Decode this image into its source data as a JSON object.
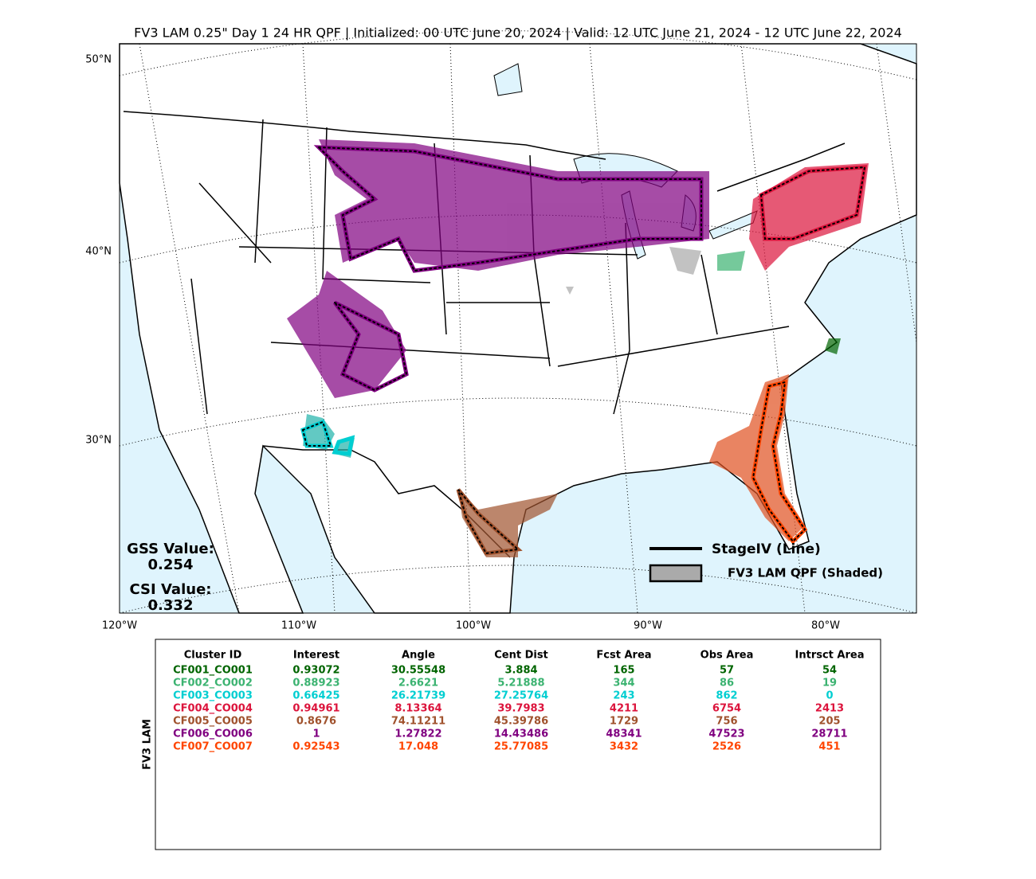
{
  "title": "FV3 LAM 0.25\" Day 1 24 HR QPF | Initialized: 00 UTC June 20, 2024 | Valid: 12 UTC June 21, 2024 - 12 UTC June 22, 2024",
  "lat_labels": [
    "50°N",
    "40°N",
    "30°N"
  ],
  "lon_labels": [
    "120°W",
    "110°W",
    "100°W",
    "90°W",
    "80°W"
  ],
  "stats": {
    "gss_label": "GSS Value:",
    "gss": "0.254",
    "csi_label": "CSI Value:",
    "csi": "0.332"
  },
  "legend": {
    "line": "StageIV (Line)",
    "shaded": "FV3 LAM QPF (Shaded)"
  },
  "table": {
    "side_label": "FV3 LAM",
    "columns": [
      "Cluster ID",
      "Interest",
      "Angle",
      "Cent Dist",
      "Fcst Area",
      "Obs Area",
      "Intrsct Area"
    ],
    "row_colors": [
      "#006400",
      "#3cb371",
      "#00ced1",
      "#dc143c",
      "#a0522d",
      "#800080",
      "#ff4500"
    ],
    "rows": [
      [
        "CF001_CO001",
        "0.93072",
        "30.55548",
        "3.884",
        "165",
        "57",
        "54"
      ],
      [
        "CF002_CO002",
        "0.88923",
        "2.6621",
        "5.21888",
        "344",
        "86",
        "19"
      ],
      [
        "CF003_CO003",
        "0.66425",
        "26.21739",
        "27.25764",
        "243",
        "862",
        "0"
      ],
      [
        "CF004_CO004",
        "0.94961",
        "8.13364",
        "39.7983",
        "4211",
        "6754",
        "2413"
      ],
      [
        "CF005_CO005",
        "0.8676",
        "74.11211",
        "45.39786",
        "1729",
        "756",
        "205"
      ],
      [
        "CF006_CO006",
        "1",
        "1.27822",
        "14.43486",
        "48341",
        "47523",
        "28711"
      ],
      [
        "CF007_CO007",
        "0.92543",
        "17.048",
        "25.77085",
        "3432",
        "2526",
        "451"
      ]
    ]
  }
}
